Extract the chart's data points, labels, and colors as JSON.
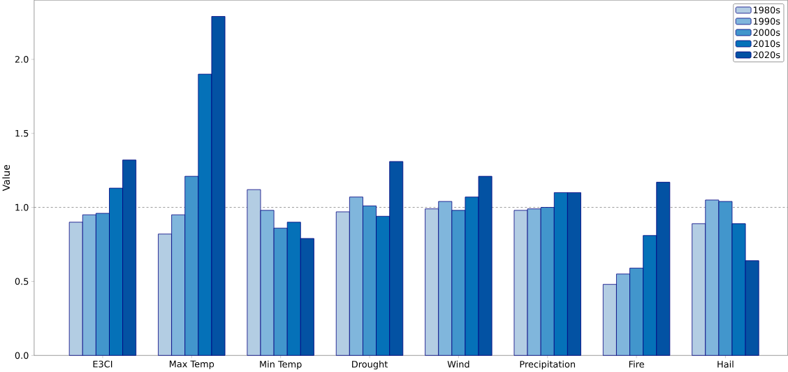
{
  "chart_data": {
    "type": "bar",
    "ylabel": "Value",
    "categories": [
      "E3CI",
      "Max Temp",
      "Min Temp",
      "Drought",
      "Wind",
      "Precipitation",
      "Fire",
      "Hail"
    ],
    "series": [
      {
        "name": "1980s",
        "color": "#b3cde3",
        "values": [
          0.9,
          0.82,
          1.12,
          0.97,
          0.99,
          0.98,
          0.48,
          0.89
        ]
      },
      {
        "name": "1990s",
        "color": "#80b6dc",
        "values": [
          0.95,
          0.95,
          0.98,
          1.07,
          1.04,
          0.99,
          0.55,
          1.05
        ]
      },
      {
        "name": "2000s",
        "color": "#4296cc",
        "values": [
          0.96,
          1.21,
          0.86,
          1.01,
          0.98,
          1.0,
          0.59,
          1.04
        ]
      },
      {
        "name": "2010s",
        "color": "#0571b8",
        "values": [
          1.13,
          1.9,
          0.9,
          0.94,
          1.07,
          1.1,
          0.81,
          0.89
        ]
      },
      {
        "name": "2020s",
        "color": "#0352a3",
        "values": [
          1.32,
          2.29,
          0.79,
          1.31,
          1.21,
          1.1,
          1.17,
          0.64
        ]
      }
    ],
    "ylim": [
      0,
      2.4
    ],
    "yticks": [
      {
        "value": 0,
        "label": "0.0"
      },
      {
        "value": 0.5,
        "label": "0.5"
      },
      {
        "value": 1,
        "label": "1.0"
      },
      {
        "value": 1.5,
        "label": "1.5"
      },
      {
        "value": 2,
        "label": "2.0"
      }
    ],
    "ref_lines": [
      {
        "axis": "y",
        "value": 1,
        "color": "#808080",
        "line_style": "dashed"
      }
    ],
    "legend": "top right",
    "grid": false
  }
}
